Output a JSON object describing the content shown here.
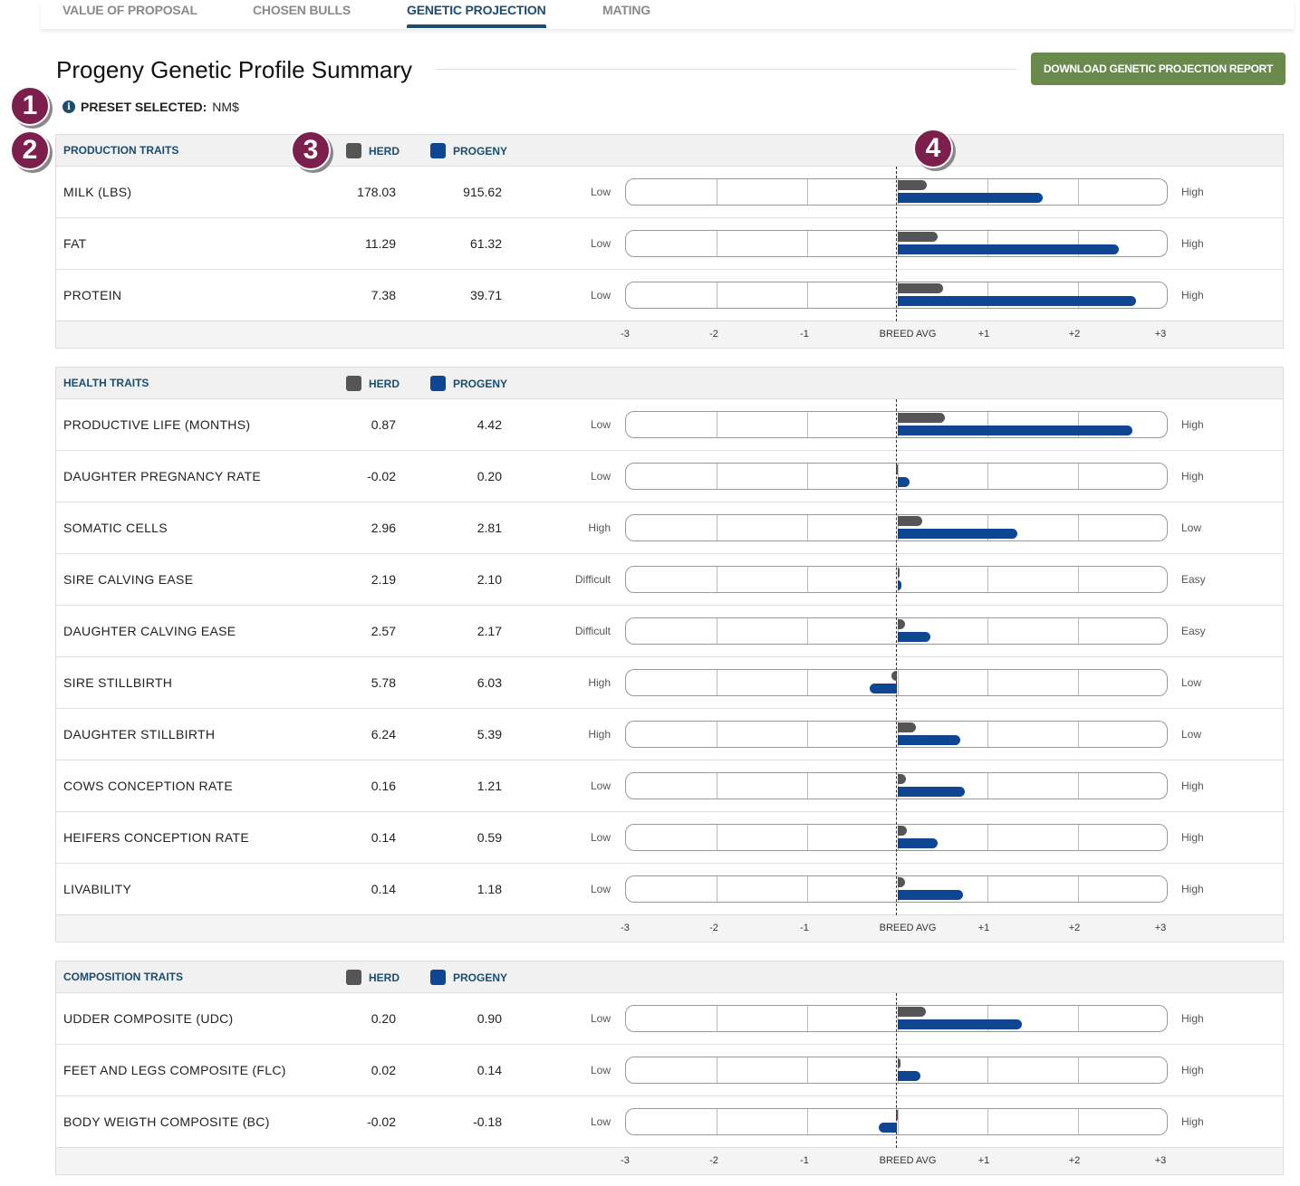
{
  "tabs": [
    {
      "label": "VALUE OF PROPOSAL"
    },
    {
      "label": "CHOSEN BULLS"
    },
    {
      "label": "GENETIC PROJECTION",
      "active": true
    },
    {
      "label": "MATING"
    }
  ],
  "page_title": "Progeny Genetic Profile Summary",
  "download_label": "DOWNLOAD GENETIC PROJECTION REPORT",
  "preset": {
    "label": "PRESET SELECTED:",
    "value": "NM$"
  },
  "legend": {
    "herd": "HERD",
    "progeny": "PROGENY"
  },
  "colors": {
    "herd": "#555555",
    "progeny": "#0d4793",
    "button": "#6a8a4d",
    "accent": "#1b4d72",
    "badge": "#7d1f4d"
  },
  "badges": [
    "1",
    "2",
    "3",
    "4"
  ],
  "axis_ticks": [
    "-3",
    "-2",
    "-1",
    "BREED AVG",
    "+1",
    "+2",
    "+3"
  ],
  "scale_range": [
    -3,
    3
  ],
  "sections": [
    {
      "title": "PRODUCTION TRAITS",
      "rows": [
        {
          "name": "MILK (LBS)",
          "herd": "178.03",
          "progeny": "915.62",
          "low": "Low",
          "high": "High",
          "herd_sd": 0.33,
          "progeny_sd": 1.61
        },
        {
          "name": "FAT",
          "herd": "11.29",
          "progeny": "61.32",
          "low": "Low",
          "high": "High",
          "herd_sd": 0.45,
          "progeny_sd": 2.45
        },
        {
          "name": "PROTEIN",
          "herd": "7.38",
          "progeny": "39.71",
          "low": "Low",
          "high": "High",
          "herd_sd": 0.51,
          "progeny_sd": 2.64
        }
      ]
    },
    {
      "title": "HEALTH TRAITS",
      "rows": [
        {
          "name": "PRODUCTIVE LIFE (MONTHS)",
          "herd": "0.87",
          "progeny": "4.42",
          "low": "Low",
          "high": "High",
          "herd_sd": 0.53,
          "progeny_sd": 2.6
        },
        {
          "name": "DAUGHTER PREGNANCY RATE",
          "herd": "-0.02",
          "progeny": "0.20",
          "low": "Low",
          "high": "High",
          "herd_sd": -0.01,
          "progeny_sd": 0.14
        },
        {
          "name": "SOMATIC CELLS",
          "herd": "2.96",
          "progeny": "2.81",
          "low": "High",
          "high": "Low",
          "herd_sd": 0.28,
          "progeny_sd": 1.33
        },
        {
          "name": "SIRE CALVING EASE",
          "herd": "2.19",
          "progeny": "2.10",
          "low": "Difficult",
          "high": "Easy",
          "herd_sd": 0.01,
          "progeny_sd": 0.05
        },
        {
          "name": "DAUGHTER CALVING EASE",
          "herd": "2.57",
          "progeny": "2.17",
          "low": "Difficult",
          "high": "Easy",
          "herd_sd": 0.09,
          "progeny_sd": 0.37
        },
        {
          "name": "SIRE STILLBIRTH",
          "herd": "5.78",
          "progeny": "6.03",
          "low": "High",
          "high": "Low",
          "herd_sd": -0.07,
          "progeny_sd": -0.31
        },
        {
          "name": "DAUGHTER STILLBIRTH",
          "herd": "6.24",
          "progeny": "5.39",
          "low": "High",
          "high": "Low",
          "herd_sd": 0.21,
          "progeny_sd": 0.7
        },
        {
          "name": "COWS CONCEPTION RATE",
          "herd": "0.16",
          "progeny": "1.21",
          "low": "Low",
          "high": "High",
          "herd_sd": 0.1,
          "progeny_sd": 0.75
        },
        {
          "name": "HEIFERS CONCEPTION RATE",
          "herd": "0.14",
          "progeny": "0.59",
          "low": "Low",
          "high": "High",
          "herd_sd": 0.11,
          "progeny_sd": 0.45
        },
        {
          "name": "LIVABILITY",
          "herd": "0.14",
          "progeny": "1.18",
          "low": "Low",
          "high": "High",
          "herd_sd": 0.09,
          "progeny_sd": 0.73
        }
      ]
    },
    {
      "title": "COMPOSITION TRAITS",
      "rows": [
        {
          "name": "UDDER COMPOSITE (UDC)",
          "herd": "0.20",
          "progeny": "0.90",
          "low": "Low",
          "high": "High",
          "herd_sd": 0.32,
          "progeny_sd": 1.38
        },
        {
          "name": "FEET AND LEGS COMPOSITE (FLC)",
          "herd": "0.02",
          "progeny": "0.14",
          "low": "Low",
          "high": "High",
          "herd_sd": 0.04,
          "progeny_sd": 0.26
        },
        {
          "name": "BODY WEIGTH COMPOSITE (BC)",
          "herd": "-0.02",
          "progeny": "-0.18",
          "low": "Low",
          "high": "High",
          "herd_sd": -0.01,
          "progeny_sd": -0.21
        }
      ]
    }
  ]
}
